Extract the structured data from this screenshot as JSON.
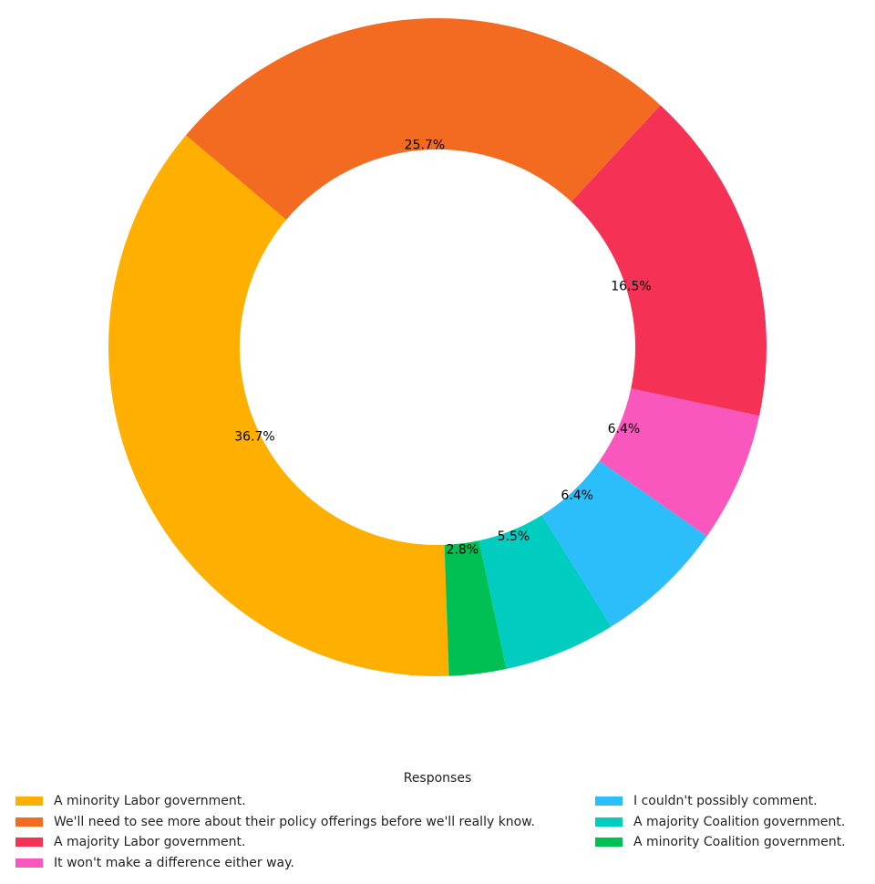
{
  "chart_data": {
    "type": "pie",
    "donut": true,
    "title": "",
    "legend_title": "Responses",
    "legend_position": "bottom",
    "categories": [
      "A minority Labor government.",
      "We'll need to see more about their policy offerings before we'll really know.",
      "A majority Labor government.",
      "It won't make a difference either way.",
      "I couldn't possibly comment.",
      "A majority Coalition government.",
      "A minority Coalition government."
    ],
    "values": [
      36.7,
      25.7,
      16.5,
      6.4,
      6.4,
      5.5,
      2.8
    ],
    "labels": [
      "36.7%",
      "25.7%",
      "16.5%",
      "6.4%",
      "6.4%",
      "5.5%",
      "2.8%"
    ],
    "colors": [
      "#FFAF00",
      "#F26B21",
      "#F53156",
      "#F957BD",
      "#2BBEFB",
      "#00CCC0",
      "#00C054"
    ]
  },
  "legend": {
    "title": "Responses",
    "left": [
      {
        "label": "A minority Labor government.",
        "color": "#FFAF00"
      },
      {
        "label": "We'll need to see more about their policy offerings before we'll really know.",
        "color": "#F26B21"
      },
      {
        "label": "A majority Labor government.",
        "color": "#F53156"
      },
      {
        "label": "It won't make a difference either way.",
        "color": "#F957BD"
      }
    ],
    "right": [
      {
        "label": "I couldn't possibly comment.",
        "color": "#2BBEFB"
      },
      {
        "label": "A majority Coalition government.",
        "color": "#00CCC0"
      },
      {
        "label": "A minority Coalition government.",
        "color": "#00C054"
      }
    ]
  }
}
